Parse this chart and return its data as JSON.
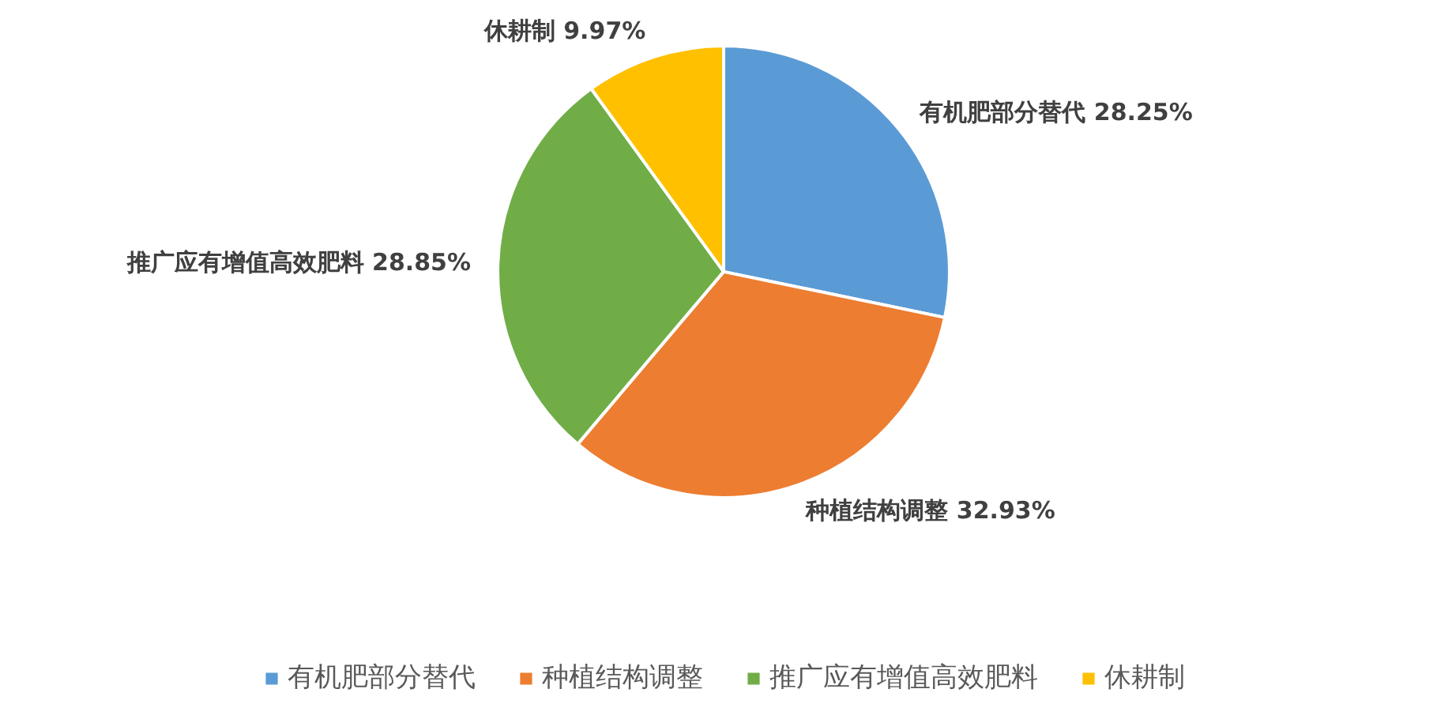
{
  "chart_data": {
    "type": "pie",
    "categories": [
      "有机肥部分替代",
      "种植结构调整",
      "推广应有增值高效肥料",
      "休耕制"
    ],
    "values": [
      28.25,
      32.93,
      28.85,
      9.97
    ],
    "value_labels": [
      "28.25%",
      "32.93%",
      "28.85%",
      "9.97%"
    ],
    "colors": [
      "#5b9bd5",
      "#ed7d31",
      "#70ad47",
      "#ffc000"
    ],
    "legend": "bottom"
  }
}
